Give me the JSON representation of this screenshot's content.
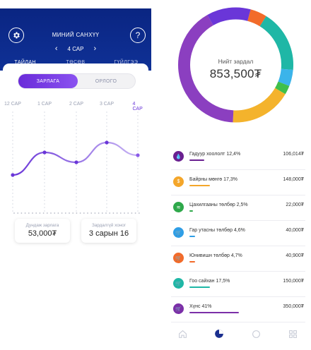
{
  "left": {
    "header": {
      "title": "МИНИЙ САНХҮҮ",
      "month": "4 САР",
      "help": "?"
    },
    "tabs": [
      "ТАЙЛАН",
      "ТӨСӨВ",
      "ГҮЙЛГЭЭ"
    ],
    "toggle": {
      "expense": "ЗАРЛАГА",
      "income": "ОРЛОГО"
    },
    "months": [
      "12 САР",
      "1 САР",
      "2 САР",
      "3 САР",
      "4 САР"
    ],
    "stats": {
      "avg_label": "Дундаж зарлага",
      "avg_value": "53,000₮",
      "streak_label": "Зардалгүй хоног",
      "streak_value": "3 сарын 16"
    },
    "chart_data": {
      "type": "line",
      "categories": [
        "12 САР",
        "1 САР",
        "2 САР",
        "3 САР",
        "4 САР"
      ],
      "values": [
        0.2,
        0.52,
        0.38,
        0.66,
        0.48
      ],
      "y_unit": "relative",
      "grid": "vertical dashed"
    }
  },
  "right": {
    "total_label": "Нийт зардал",
    "total_value": "853,500₮",
    "donut": [
      {
        "name": "Гадуур хоололт",
        "pct": 12.4,
        "color": "#6a36d8"
      },
      {
        "name": "Байрны мөнгө",
        "pct": 17.3,
        "color": "#f4b32c"
      },
      {
        "name": "Цахилгааны төлбөр",
        "pct": 2.5,
        "color": "#3fbf4a"
      },
      {
        "name": "Гар утасны төлбөр",
        "pct": 4.6,
        "color": "#3bb4ea"
      },
      {
        "name": "Юнивишн төлбөр",
        "pct": 4.7,
        "color": "#f26b2a"
      },
      {
        "name": "Гоо сайхан",
        "pct": 17.5,
        "color": "#1fb7a6"
      },
      {
        "name": "Хүнс",
        "pct": 41,
        "color": "#8b3fc0"
      }
    ],
    "items": [
      {
        "label": "Гадуур хоололт 12,4%",
        "amount": "106,014₮",
        "color": "#6a2090",
        "icon": "drop-icon",
        "glyph": "💧",
        "bar": 0.23
      },
      {
        "label": "Байрны мөнгө 17,3%",
        "amount": "148,000₮",
        "color": "#f4a62a",
        "icon": "money-bag-icon",
        "glyph": "$",
        "bar": 0.32
      },
      {
        "label": "Цахилгааны төлбөр 2,5%",
        "amount": "22,000₮",
        "color": "#2ea84a",
        "icon": "wifi-icon",
        "glyph": "≋",
        "bar": 0.05
      },
      {
        "label": "Гар утасны төлбөр 4,6%",
        "amount": "40,000₮",
        "color": "#2f9ee6",
        "icon": "cart-icon",
        "glyph": "🛒",
        "bar": 0.09
      },
      {
        "label": "Юнивишн төлбөр 4,7%",
        "amount": "40,900₮",
        "color": "#f26b2a",
        "icon": "cart-icon",
        "glyph": "🛒",
        "bar": 0.09
      },
      {
        "label": "Гоо сайхан 17,5%",
        "amount": "150,000₮",
        "color": "#1fb7a6",
        "icon": "cart-icon",
        "glyph": "🛒",
        "bar": 0.32
      },
      {
        "label": "Хүнс 41%",
        "amount": "350,000₮",
        "color": "#7b2fa8",
        "icon": "cart-icon",
        "glyph": "🛒",
        "bar": 0.78
      }
    ],
    "nav": [
      "home-icon",
      "pie-chart-icon",
      "chat-icon",
      "grid-icon"
    ]
  }
}
